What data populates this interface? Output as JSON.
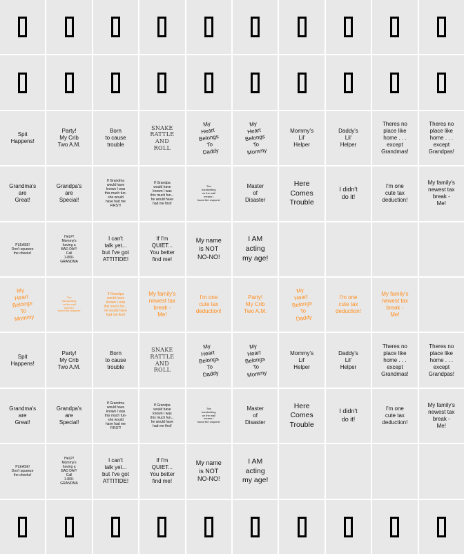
{
  "colors": {
    "cell_bg": "#e8e8e8",
    "text": "#111111",
    "accent": "#ff8c1a"
  },
  "glyph_rows": [
    "box-glyph-icon"
  ],
  "rows": [
    {
      "kind": "glyph",
      "cells": [
        1,
        1,
        1,
        1,
        1,
        1,
        1,
        1,
        1,
        1
      ]
    },
    {
      "kind": "glyph",
      "cells": [
        1,
        1,
        1,
        1,
        1,
        1,
        1,
        1,
        1,
        1
      ]
    },
    {
      "kind": "text",
      "cells": [
        {
          "text": "Spit\nHappens!",
          "size": "md"
        },
        {
          "text": "Party!\nMy Crib\nTwo A.M.",
          "size": "md"
        },
        {
          "text": "Born\nto cause\ntrouble",
          "size": "md"
        },
        {
          "text": "SNAKE\nRATTLE\nAND\nROLL",
          "size": "mono"
        },
        {
          "text": "My\nHeart\nBelongs\nTo\nDaddy",
          "size": "md",
          "tilt": true
        },
        {
          "text": "My\nHeart\nBelongs\nTo\nMommy",
          "size": "md",
          "tilt": true
        },
        {
          "text": "Mommy's\nLil'\nHelper",
          "size": "md"
        },
        {
          "text": "Daddy's\nLil'\nHelper",
          "size": "md"
        },
        {
          "text": "Theres no\nplace like\nhome . . .\nexcept\nGrandmas!",
          "size": "md"
        },
        {
          "text": "Theres no\nplace like\nhome . . .\nexcept\nGrandpas!",
          "size": "md"
        }
      ]
    },
    {
      "kind": "text",
      "cells": [
        {
          "text": "Grandma's\nare\nGreat!",
          "size": "md"
        },
        {
          "text": "Grandpa's\nare\nSpecial!",
          "size": "md"
        },
        {
          "text": "If Grandma\nwould have\nknown I was\nthis much fun-\nshe would\nhave had me\nFIRST!",
          "size": "xs"
        },
        {
          "text": "If Grandpa\nwould have\nknown I was\nthis much fun...\nhe would have\nhad me first!",
          "size": "xs"
        },
        {
          "text": "The\nhandwriting\non the wall\nmeans I\nfound the crayons!",
          "size": "xxs"
        },
        {
          "text": "Master\nof\nDisaster",
          "size": "md"
        },
        {
          "text": "Here\nComes\nTrouble",
          "size": "xl"
        },
        {
          "text": "I didn't\ndo it!",
          "size": "lg"
        },
        {
          "text": "I'm one\ncute tax\ndeduction!",
          "size": "md"
        },
        {
          "text": "My family's\nnewest tax\nbreak -\nMe!",
          "size": "md"
        }
      ]
    },
    {
      "kind": "text",
      "cells": [
        {
          "text": "PLEASE!\nDon't squeeze\nthe cheeks!",
          "size": "xs"
        },
        {
          "text": "HeLP!\nMommy's\nhaving a\nBAD DAY!\nCall\n1-800-\nGRANDMA",
          "size": "xs"
        },
        {
          "text": "I can't\ntalk yet...\nbut I've got\nATTITIDE!",
          "size": "md"
        },
        {
          "text": "If I'm\nQUIET...\nYou better\nfind me!",
          "size": "md"
        },
        {
          "text": "My name\nis NOT\nNO-NO!",
          "size": "lg"
        },
        {
          "text": "I AM\nacting\nmy age!",
          "size": "xl"
        },
        {
          "text": "",
          "size": "md"
        },
        {
          "text": "",
          "size": "md"
        },
        {
          "text": "",
          "size": "md"
        },
        {
          "text": "",
          "size": "md"
        }
      ]
    },
    {
      "kind": "text",
      "orange": true,
      "cells": [
        {
          "text": "My\nHeart\nBelongs\nTo\nMommy",
          "size": "md",
          "tilt": true
        },
        {
          "text": "The\nhandwriting\non the wall\nmeans I\nfound the crayons!",
          "size": "xxs"
        },
        {
          "text": "If Grandpa\nwould have\nknown I was\nthis much fun...\nhe would have\nhad me first!",
          "size": "xs"
        },
        {
          "text": "My family's\nnewest tax\nbreak -\nMe!",
          "size": "md"
        },
        {
          "text": "I'm one\ncute tax\ndeduction!",
          "size": "md"
        },
        {
          "text": "Party!\nMy Crib\nTwo A.M.",
          "size": "md"
        },
        {
          "text": "My\nHeart\nBelongs\nTo\nDaddy",
          "size": "md",
          "tilt": true
        },
        {
          "text": "I'm one\ncute tax\ndeduction!",
          "size": "md"
        },
        {
          "text": "My family's\nnewest tax\nbreak -\nMe!",
          "size": "md"
        },
        {
          "text": "",
          "size": "md"
        }
      ]
    },
    {
      "kind": "text",
      "cells": [
        {
          "text": "Spit\nHappens!",
          "size": "md"
        },
        {
          "text": "Party!\nMy Crib\nTwo A.M.",
          "size": "md"
        },
        {
          "text": "Born\nto cause\ntrouble",
          "size": "md"
        },
        {
          "text": "SNAKE\nRATTLE\nAND\nROLL",
          "size": "mono"
        },
        {
          "text": "My\nHeart\nBelongs\nTo\nDaddy",
          "size": "md",
          "tilt": true
        },
        {
          "text": "My\nHeart\nBelongs\nTo\nMommy",
          "size": "md",
          "tilt": true
        },
        {
          "text": "Mommy's\nLil'\nHelper",
          "size": "md"
        },
        {
          "text": "Daddy's\nLil'\nHelper",
          "size": "md"
        },
        {
          "text": "Theres no\nplace like\nhome . . .\nexcept\nGrandmas!",
          "size": "md"
        },
        {
          "text": "Theres no\nplace like\nhome . . .\nexcept\nGrandpas!",
          "size": "md"
        }
      ]
    },
    {
      "kind": "text",
      "cells": [
        {
          "text": "Grandma's\nare\nGreat!",
          "size": "md"
        },
        {
          "text": "Grandpa's\nare\nSpecial!",
          "size": "md"
        },
        {
          "text": "If Grandma\nwould have\nknown I was\nthis much fun-\nshe would\nhave had me\nFIRST!",
          "size": "xs"
        },
        {
          "text": "If Grandpa\nwould have\nknown I was\nthis much fun...\nhe would have\nhad me first!",
          "size": "xs"
        },
        {
          "text": "The\nhandwriting\non the wall\nmeans I\nfound the crayons!",
          "size": "xxs"
        },
        {
          "text": "Master\nof\nDisaster",
          "size": "md"
        },
        {
          "text": "Here\nComes\nTrouble",
          "size": "xl"
        },
        {
          "text": "I didn't\ndo it!",
          "size": "lg"
        },
        {
          "text": "I'm one\ncute tax\ndeduction!",
          "size": "md"
        },
        {
          "text": "My family's\nnewest tax\nbreak -\nMe!",
          "size": "md"
        }
      ]
    },
    {
      "kind": "text",
      "cells": [
        {
          "text": "PLEASE!\nDon't squeeze\nthe cheeks!",
          "size": "xs"
        },
        {
          "text": "HeLP!\nMommy's\nhaving a\nBAD DAY!\nCall\n1-800-\nGRANDMA",
          "size": "xs"
        },
        {
          "text": "I can't\ntalk yet...\nbut I've got\nATTITIDE!",
          "size": "md"
        },
        {
          "text": "If I'm\nQUIET...\nYou better\nfind me!",
          "size": "md"
        },
        {
          "text": "My name\nis NOT\nNO-NO!",
          "size": "lg"
        },
        {
          "text": "I AM\nacting\nmy age!",
          "size": "xl"
        },
        {
          "text": "",
          "size": "md"
        },
        {
          "text": "",
          "size": "md"
        },
        {
          "text": "",
          "size": "md"
        },
        {
          "text": "",
          "size": "md"
        }
      ]
    },
    {
      "kind": "glyph",
      "cells": [
        1,
        1,
        1,
        1,
        1,
        1,
        1,
        1,
        1,
        1
      ]
    }
  ]
}
